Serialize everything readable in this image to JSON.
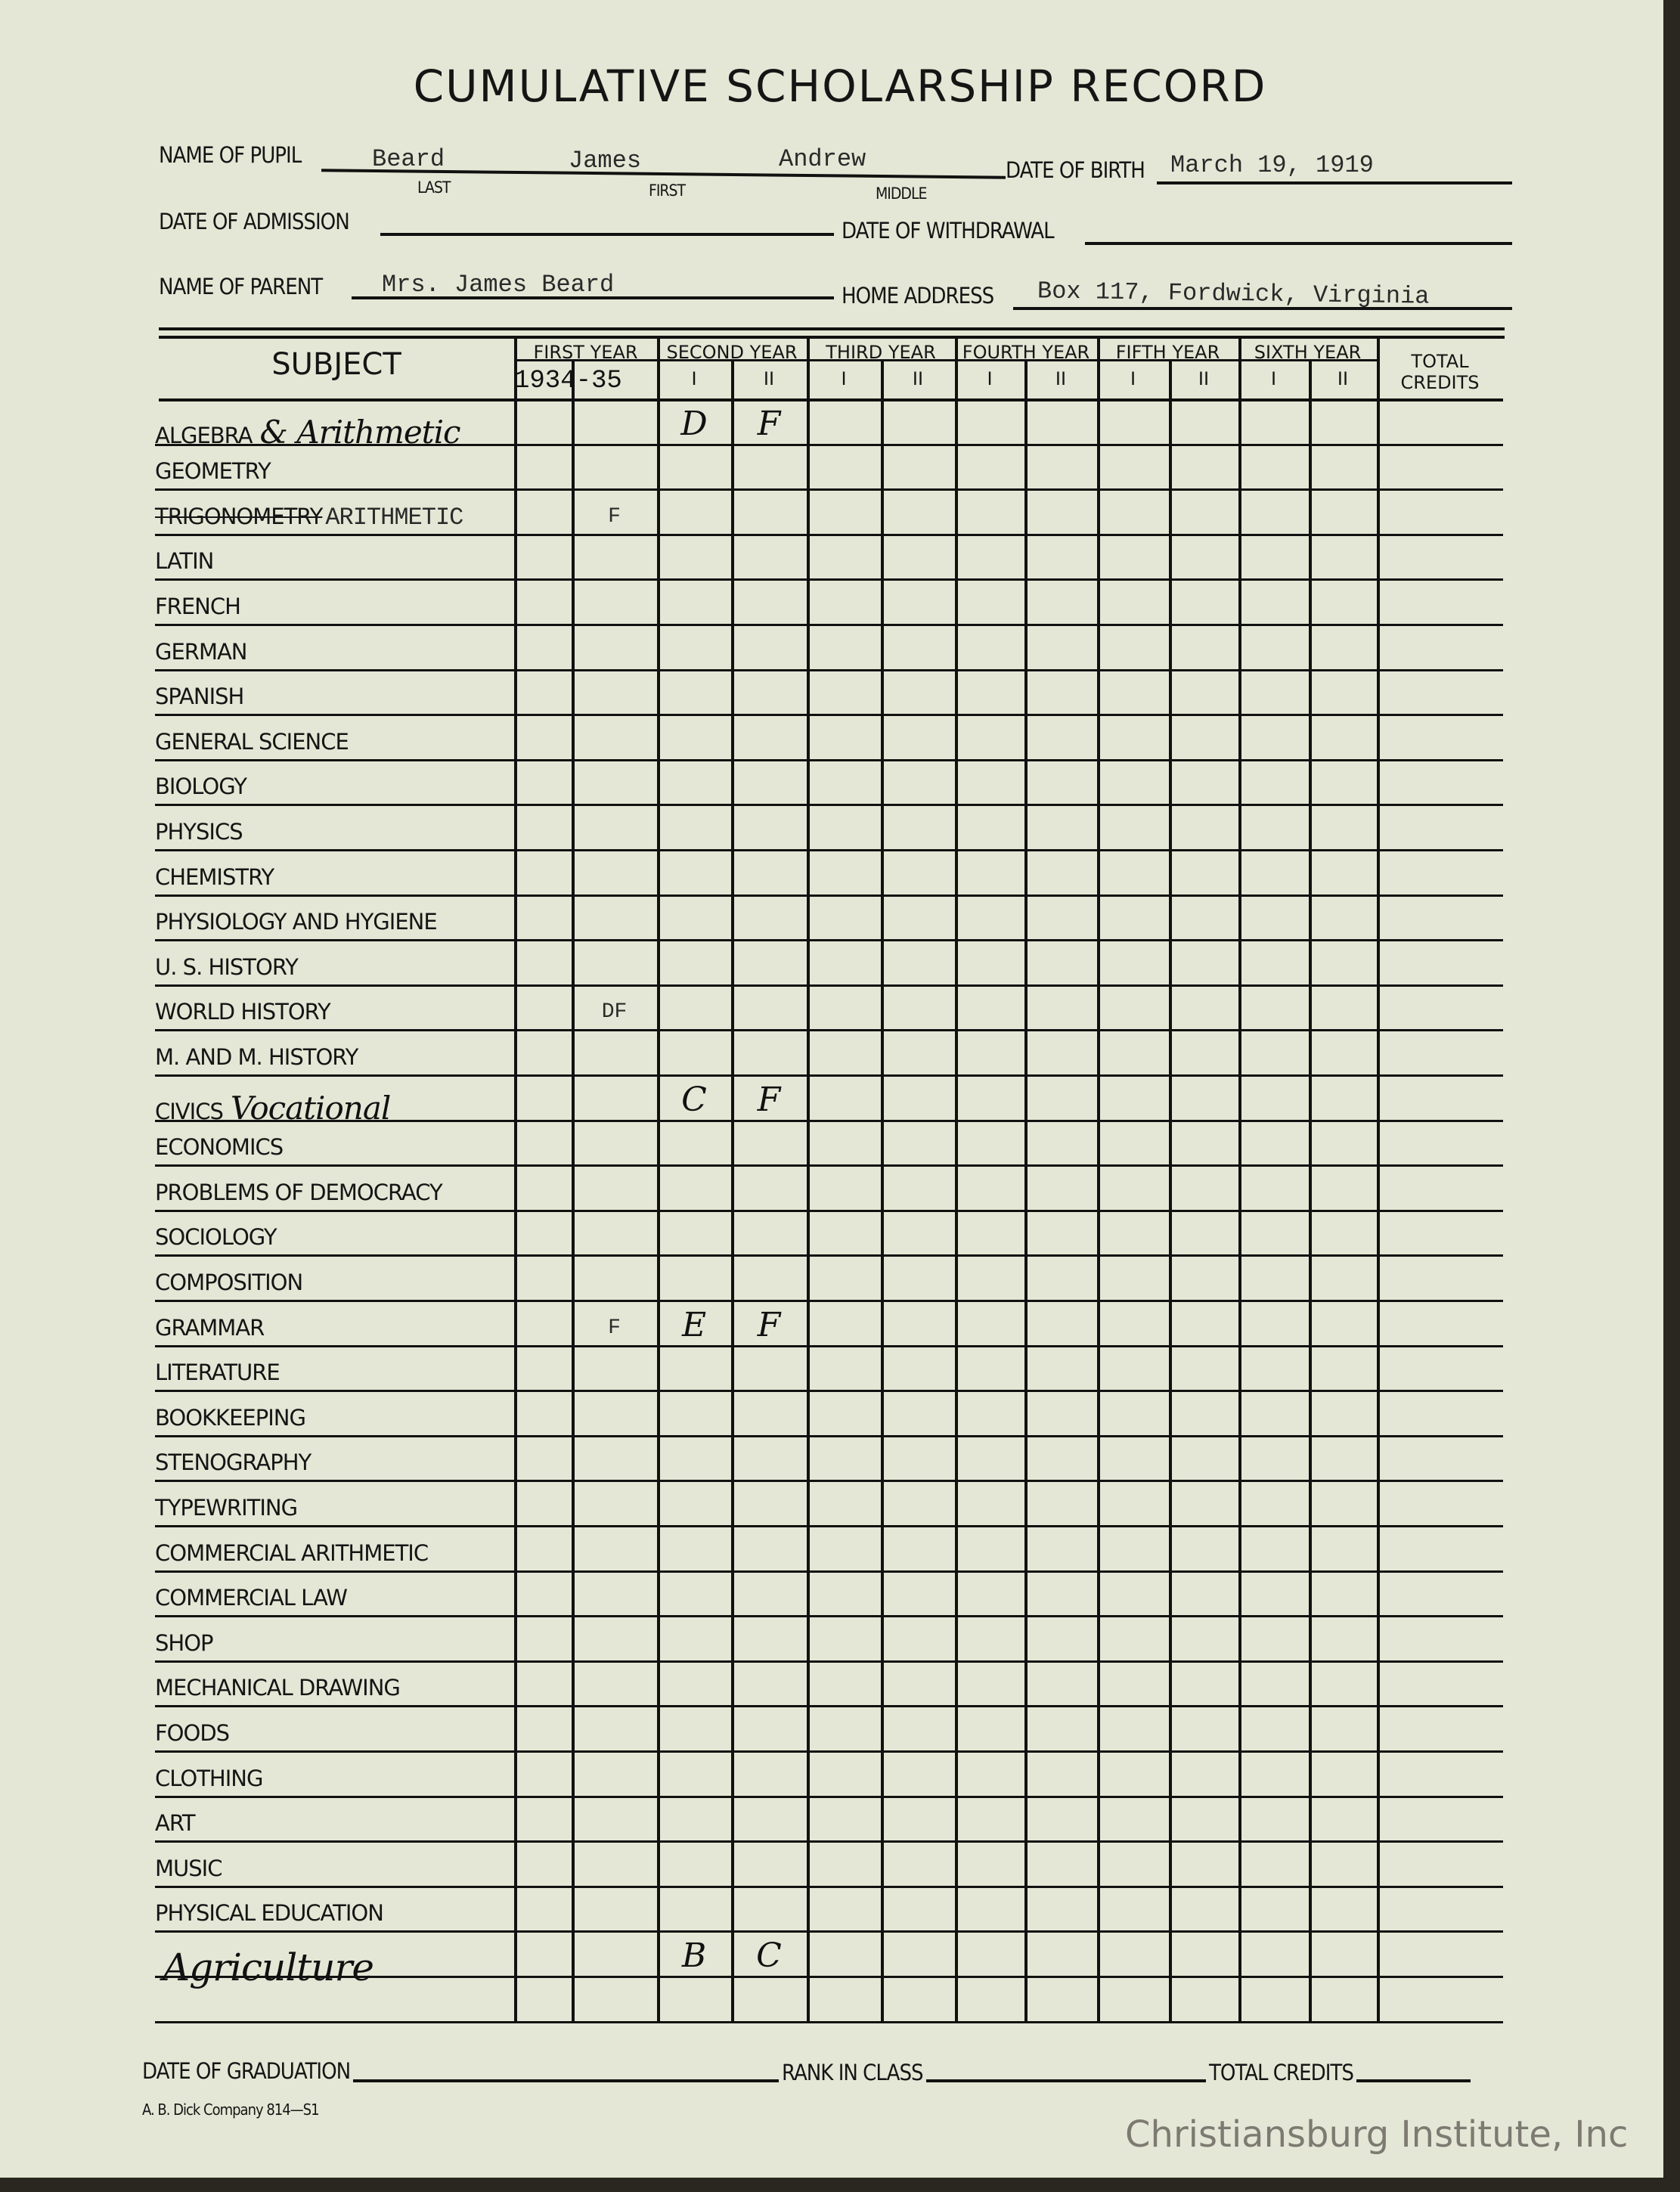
{
  "form": {
    "title": "CUMULATIVE SCHOLARSHIP RECORD",
    "name_of_pupil_label": "NAME OF PUPIL",
    "last_label": "LAST",
    "first_label": "FIRST",
    "middle_label": "MIDDLE",
    "last_name": "Beard",
    "first_name": "James",
    "middle_name": "Andrew",
    "date_of_birth_label": "DATE OF BIRTH",
    "date_of_birth": "March 19, 1919",
    "date_of_admission_label": "DATE OF ADMISSION",
    "date_of_withdrawal_label": "DATE OF WITHDRAWAL",
    "name_of_parent_label": "NAME OF PARENT",
    "name_of_parent": "Mrs. James Beard",
    "home_address_label": "HOME ADDRESS",
    "home_address": "Box 117, Fordwick, Virginia"
  },
  "table": {
    "subject_header": "SUBJECT",
    "years": [
      "FIRST YEAR",
      "SECOND YEAR",
      "THIRD YEAR",
      "FOURTH YEAR",
      "FIFTH YEAR",
      "SIXTH YEAR"
    ],
    "total_credits_header": "TOTAL CREDITS",
    "first_year_session": "1934-35",
    "semesters": [
      "I",
      "II"
    ],
    "rows": [
      {
        "subject": "ALGEBRA",
        "annotation": "& Arithmetic",
        "grades": {
          "2-1": "D",
          "2-2": "F"
        }
      },
      {
        "subject": "GEOMETRY",
        "grades": {}
      },
      {
        "subject": "TRIGONOMETRY",
        "struck": true,
        "typed_annotation": "ARITHMETIC",
        "grades": {
          "1-2": "F"
        }
      },
      {
        "subject": "LATIN",
        "grades": {}
      },
      {
        "subject": "FRENCH",
        "grades": {}
      },
      {
        "subject": "GERMAN",
        "grades": {}
      },
      {
        "subject": "SPANISH",
        "grades": {}
      },
      {
        "subject": "GENERAL SCIENCE",
        "grades": {}
      },
      {
        "subject": "BIOLOGY",
        "grades": {}
      },
      {
        "subject": "PHYSICS",
        "grades": {}
      },
      {
        "subject": "CHEMISTRY",
        "grades": {}
      },
      {
        "subject": "PHYSIOLOGY AND HYGIENE",
        "grades": {}
      },
      {
        "subject": "U. S. HISTORY",
        "grades": {}
      },
      {
        "subject": "WORLD HISTORY",
        "grades": {
          "1-2": "DF"
        }
      },
      {
        "subject": "M. AND M. HISTORY",
        "grades": {}
      },
      {
        "subject": "CIVICS",
        "annotation": "Vocational",
        "grades": {
          "2-1": "C",
          "2-2": "F"
        }
      },
      {
        "subject": "ECONOMICS",
        "grades": {}
      },
      {
        "subject": "PROBLEMS OF DEMOCRACY",
        "grades": {}
      },
      {
        "subject": "SOCIOLOGY",
        "grades": {}
      },
      {
        "subject": "COMPOSITION",
        "grades": {}
      },
      {
        "subject": "GRAMMAR",
        "grades": {
          "1-2": "F",
          "2-1": "E",
          "2-2": "F"
        }
      },
      {
        "subject": "LITERATURE",
        "grades": {}
      },
      {
        "subject": "BOOKKEEPING",
        "grades": {}
      },
      {
        "subject": "STENOGRAPHY",
        "grades": {}
      },
      {
        "subject": "TYPEWRITING",
        "grades": {}
      },
      {
        "subject": "COMMERCIAL ARITHMETIC",
        "grades": {}
      },
      {
        "subject": "COMMERCIAL LAW",
        "grades": {}
      },
      {
        "subject": "SHOP",
        "grades": {}
      },
      {
        "subject": "MECHANICAL DRAWING",
        "grades": {}
      },
      {
        "subject": "FOODS",
        "grades": {}
      },
      {
        "subject": "CLOTHING",
        "grades": {}
      },
      {
        "subject": "ART",
        "grades": {}
      },
      {
        "subject": "MUSIC",
        "grades": {}
      },
      {
        "subject": "PHYSICAL EDUCATION",
        "grades": {}
      },
      {
        "subject": "",
        "annotation": "Agriculture",
        "grades": {
          "2-1": "B",
          "2-2": "C"
        }
      },
      {
        "subject": "",
        "grades": {}
      }
    ]
  },
  "footer": {
    "date_of_graduation_label": "DATE OF GRADUATION",
    "rank_in_class_label": "RANK IN CLASS",
    "total_credits_label": "TOTAL CREDITS",
    "publisher": "A. B. Dick Company  814—S1"
  },
  "watermark": "Christiansburg Institute, Inc"
}
